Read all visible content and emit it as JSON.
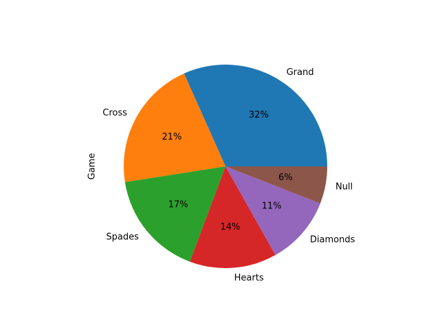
{
  "chart_data": {
    "type": "pie",
    "ylabel": "Game",
    "slices": [
      {
        "label": "Grand",
        "value": 32,
        "pct_label": "32%",
        "color": "#1f77b4"
      },
      {
        "label": "Cross",
        "value": 21,
        "pct_label": "21%",
        "color": "#ff7f0e"
      },
      {
        "label": "Spades",
        "value": 17,
        "pct_label": "17%",
        "color": "#2ca02c"
      },
      {
        "label": "Hearts",
        "value": 14,
        "pct_label": "14%",
        "color": "#d62728"
      },
      {
        "label": "Diamonds",
        "value": 11,
        "pct_label": "11%",
        "color": "#9467bd"
      },
      {
        "label": "Null",
        "value": 6,
        "pct_label": "6%",
        "color": "#8c564b"
      }
    ],
    "start_angle_deg": 0,
    "direction": "counterclockwise"
  }
}
